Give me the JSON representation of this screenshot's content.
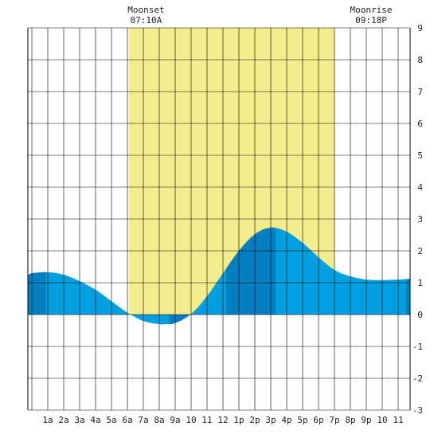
{
  "chart_data": {
    "type": "area",
    "title": "",
    "xlabel": "",
    "ylabel": "",
    "xlim": [
      -0.25,
      23.75
    ],
    "ylim": [
      -3,
      9
    ],
    "grid": true,
    "x_tick_labels": [
      "1a",
      "2a",
      "3a",
      "4a",
      "5a",
      "6a",
      "7a",
      "8a",
      "9a",
      "10",
      "11",
      "12",
      "1p",
      "2p",
      "3p",
      "4p",
      "5p",
      "6p",
      "7p",
      "8p",
      "9p",
      "10",
      "11"
    ],
    "y_tick_labels": [
      "-3",
      "-2",
      "-1",
      "0",
      "1",
      "2",
      "3",
      "4",
      "5",
      "6",
      "7",
      "8",
      "9"
    ],
    "daylight_span": [
      6.1,
      19.0
    ],
    "tide_points": {
      "x": [
        -0.25,
        0,
        1,
        2,
        3,
        4,
        5,
        6,
        7,
        8,
        8.5,
        9,
        10,
        11,
        12,
        13,
        14,
        15,
        16,
        17,
        18,
        19,
        20,
        21,
        22,
        23,
        23.75
      ],
      "y": [
        1.25,
        1.3,
        1.33,
        1.25,
        1.05,
        0.78,
        0.42,
        0.06,
        -0.2,
        -0.3,
        -0.3,
        -0.26,
        0.02,
        0.58,
        1.3,
        2.0,
        2.52,
        2.73,
        2.6,
        2.25,
        1.8,
        1.4,
        1.2,
        1.1,
        1.08,
        1.1,
        1.12
      ]
    },
    "dark_bands": [
      [
        -0.25,
        0.9
      ],
      [
        8.6,
        9.9
      ],
      [
        12.2,
        15.3
      ],
      [
        23.5,
        23.75
      ]
    ],
    "annotations": [
      {
        "label": "Moonset",
        "time": "07:10A",
        "x": 7.17
      },
      {
        "label": "Moonrise",
        "time": "09:18P",
        "x": 21.3
      }
    ],
    "colors": {
      "tide": "#00A0E0",
      "tide_dark": "#0080C0",
      "daylight": "#F5EC8C",
      "grid": "#000000",
      "background": "#FFFFFF"
    }
  }
}
